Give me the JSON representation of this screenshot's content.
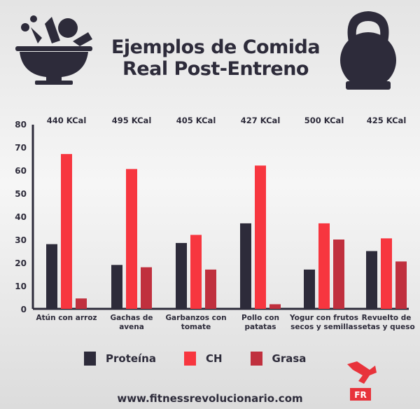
{
  "header": {
    "title_line1": "Ejemplos de Comida",
    "title_line2": "Real Post-Entreno"
  },
  "footer": {
    "url": "www.fitnessrevolucionario.com",
    "logo_text": "FR"
  },
  "colors": {
    "proteina": "#2d2b3a",
    "ch": "#f7363f",
    "grasa": "#c0303e",
    "text": "#2d2b3a"
  },
  "chart_data": {
    "type": "bar",
    "categories": [
      "Atún con arroz",
      "Gachas de avena",
      "Garbanzos con tomate",
      "Pollo con patatas",
      "Yogur con frutos secos y semillas",
      "Revuelto de setas y queso"
    ],
    "category_lines": [
      [
        "Atún con arroz"
      ],
      [
        "Gachas de",
        "avena"
      ],
      [
        "Garbanzos con",
        "tomate"
      ],
      [
        "Pollo con",
        "patatas"
      ],
      [
        "Yogur con frutos",
        "secos y semillas"
      ],
      [
        "Revuelto de",
        "setas y queso"
      ]
    ],
    "annotations": [
      "440 KCal",
      "495 KCal",
      "405 KCal",
      "427 KCal",
      "500 KCal",
      "425 KCal"
    ],
    "series": [
      {
        "name": "Proteína",
        "values": [
          28,
          19,
          28.5,
          37,
          17,
          25
        ]
      },
      {
        "name": "CH",
        "values": [
          67,
          60.5,
          32,
          62,
          37,
          30.5
        ]
      },
      {
        "name": "Grasa",
        "values": [
          4.5,
          18,
          17,
          2,
          30,
          20.5
        ]
      }
    ],
    "yticks": [
      0,
      10,
      20,
      30,
      40,
      50,
      60,
      70,
      80
    ],
    "ylim": [
      0,
      80
    ],
    "xlabel": "",
    "ylabel": "",
    "title": "",
    "grid": false,
    "legend": "bottom"
  }
}
